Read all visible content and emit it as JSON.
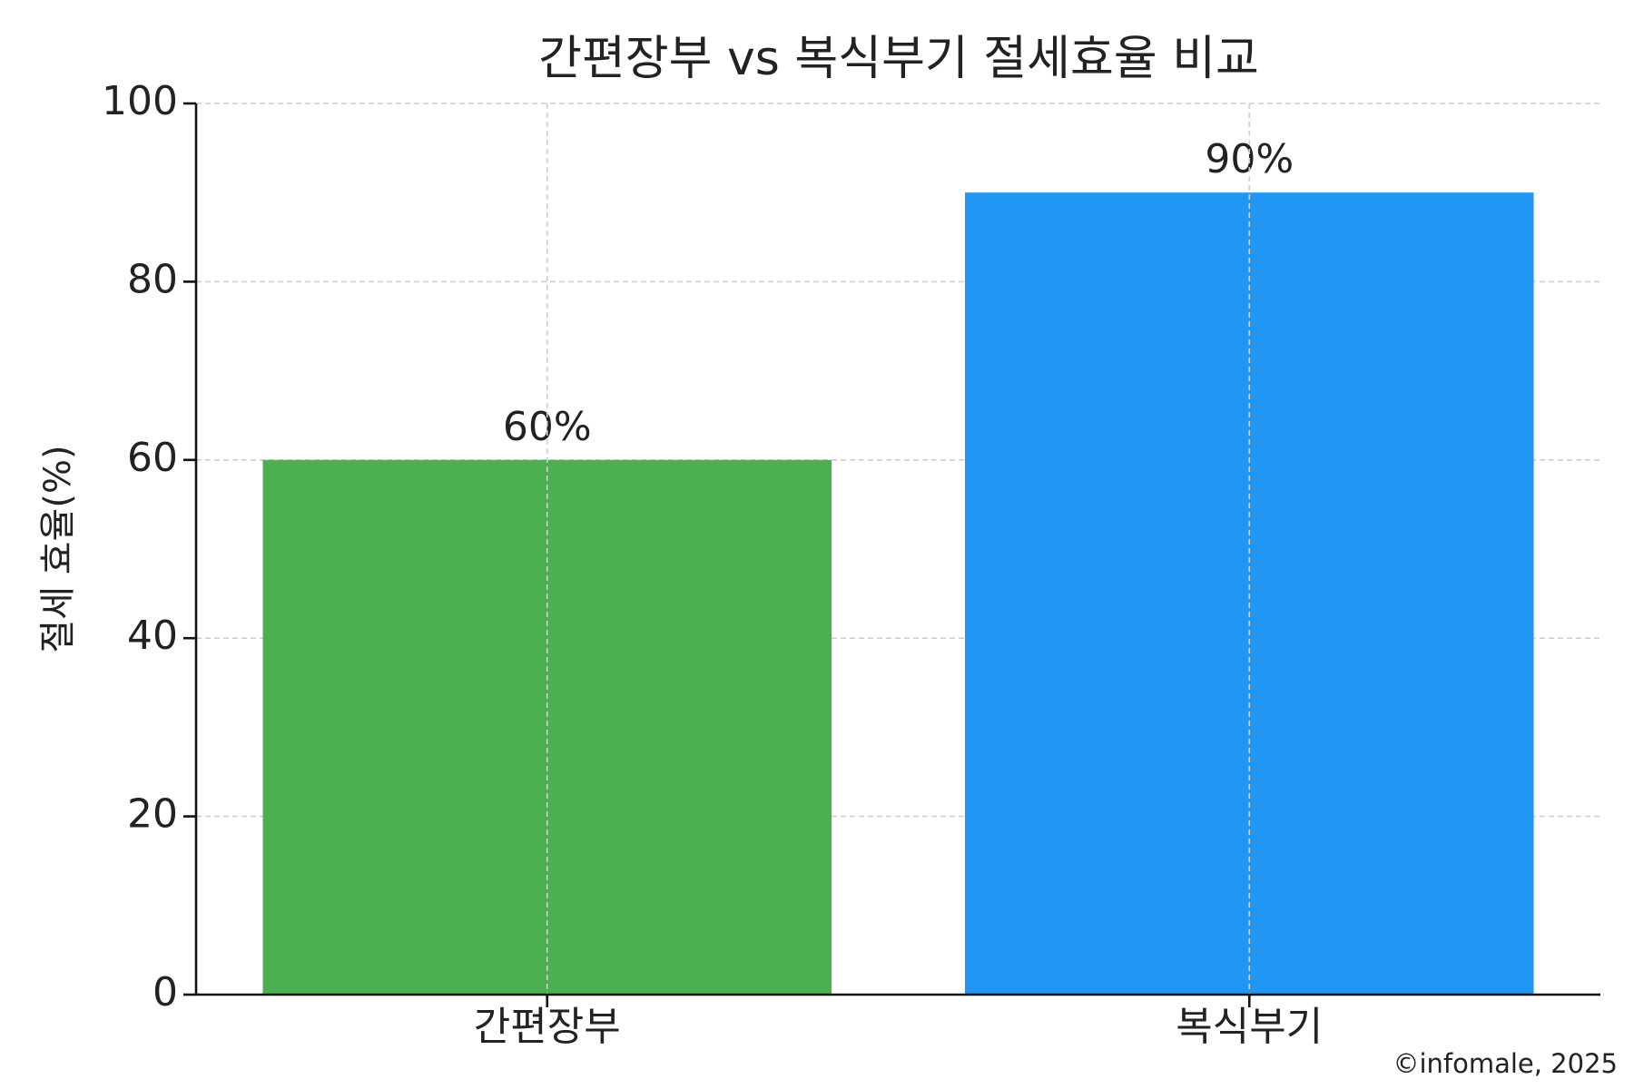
{
  "chart_data": {
    "type": "bar",
    "title": "간편장부 vs 복식부기 절세효율 비교",
    "y_label": "절세 효율(%)",
    "categories": [
      "간편장부",
      "복식부기"
    ],
    "values": [
      60,
      90
    ],
    "value_labels": [
      "60%",
      "90%"
    ],
    "colors": [
      "#4caf50",
      "#2196f3"
    ],
    "ylim": [
      0,
      100
    ],
    "yticks": [
      0,
      20,
      40,
      60,
      80,
      100
    ],
    "grid": true,
    "annotation": "©infomale, 2025"
  }
}
